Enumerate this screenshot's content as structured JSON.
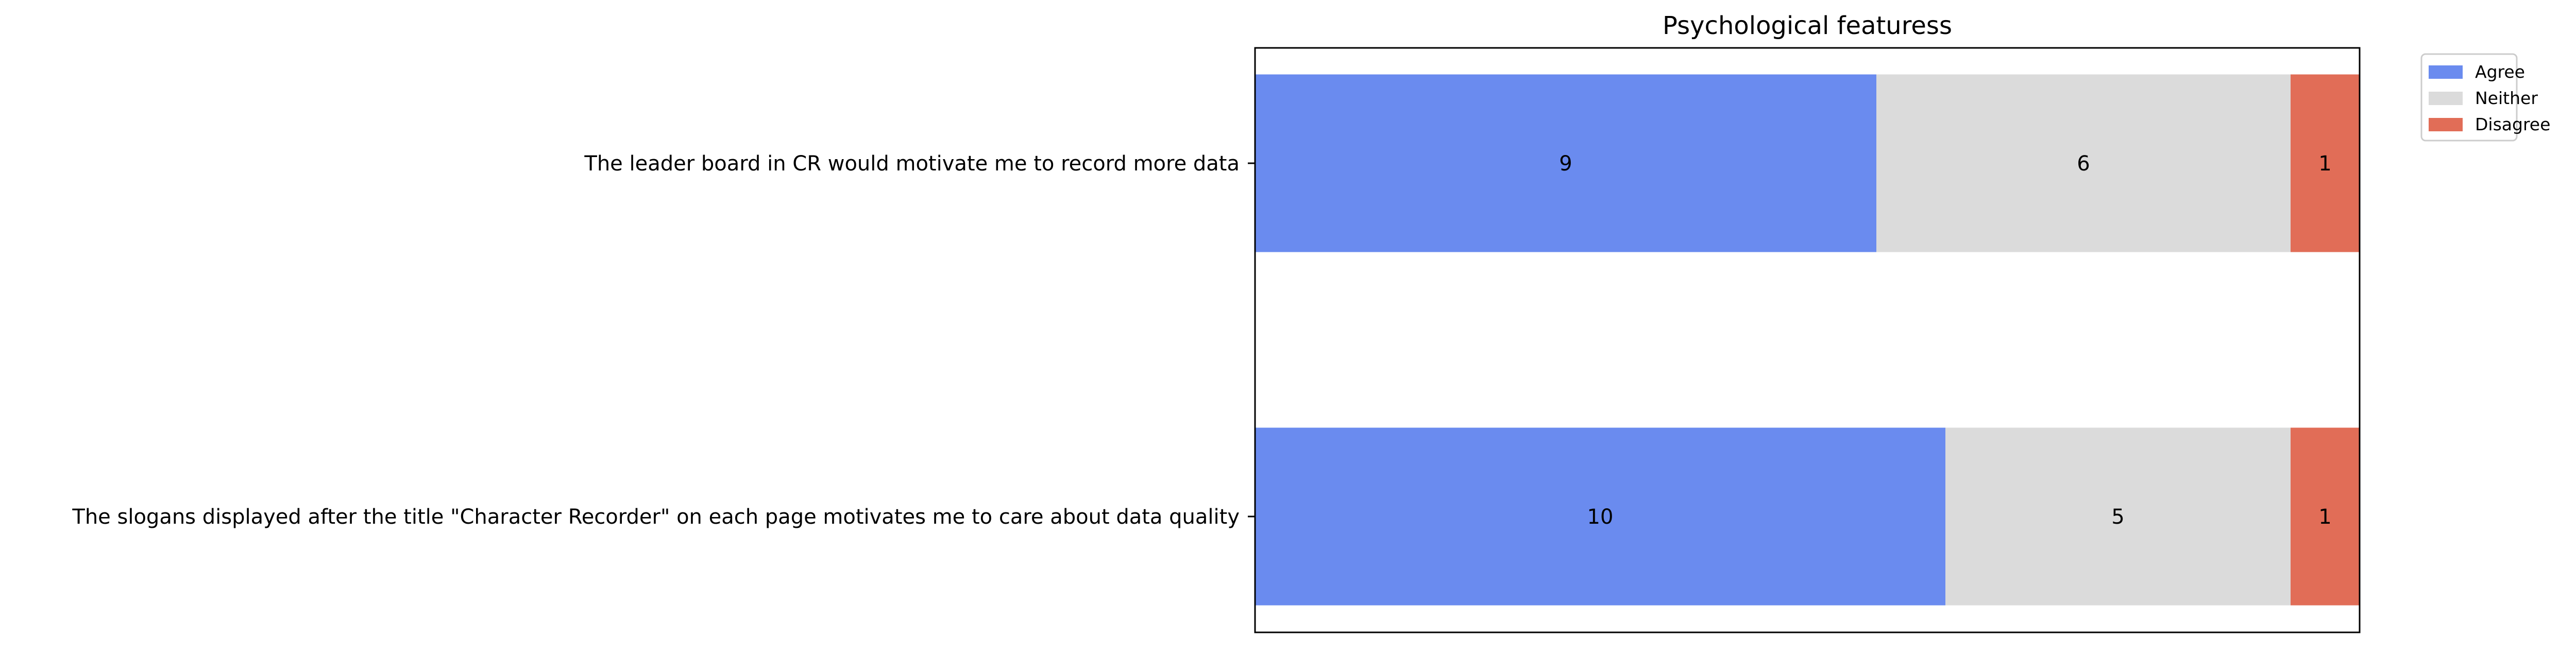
{
  "chart_data": {
    "type": "bar",
    "orientation": "horizontal",
    "stacked": true,
    "title": "Psychological featuress",
    "xlabel": "",
    "ylabel": "",
    "xlim": [
      0,
      16
    ],
    "grid": false,
    "x_ticks_visible": false,
    "legend_position": "outside-top-right",
    "categories": [
      "The leader board in CR would motivate me to record more data",
      "The slogans displayed after  the title \"Character Recorder\" on each page motivates me to care about data quality"
    ],
    "series": [
      {
        "name": "Agree",
        "color": "#6a8bef",
        "values": [
          9,
          10
        ]
      },
      {
        "name": "Neither",
        "color": "#dbdbdb",
        "values": [
          6,
          5
        ]
      },
      {
        "name": "Disagree",
        "color": "#e16d57",
        "values": [
          1,
          1
        ]
      }
    ]
  }
}
